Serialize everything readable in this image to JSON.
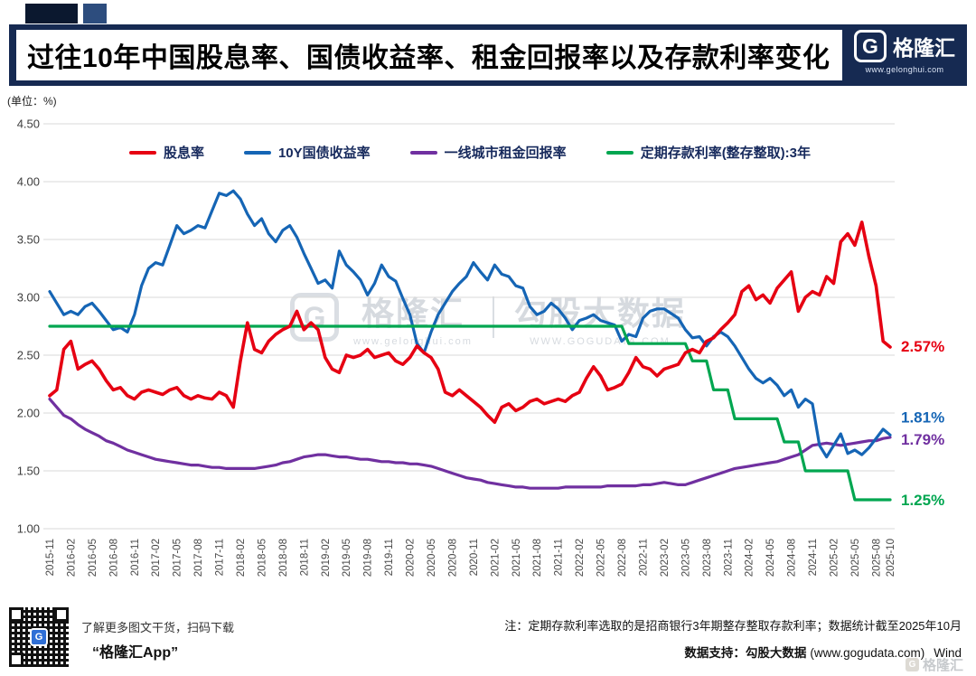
{
  "header": {
    "title": "过往10年中国股息率、国债收益率、租金回报率以及存款利率变化",
    "logo": {
      "monogram": "G",
      "brand": "格隆汇",
      "url": "www.gelonghui.com"
    }
  },
  "unit_label": "(单位：%)",
  "chart_data": {
    "type": "line",
    "title": "过往10年中国股息率、国债收益率、租金回报率以及存款利率变化",
    "ylabel": "(单位：%)",
    "xlabel": "",
    "ylim": [
      1.0,
      4.5
    ],
    "grid": true,
    "legend_position": "top",
    "yticks": [
      "4.50",
      "4.00",
      "3.50",
      "3.00",
      "2.50",
      "2.00",
      "1.50",
      "1.00"
    ],
    "x_monthly_start": "2015-11",
    "x_tick_labels": [
      "2015-11",
      "2016-02",
      "2016-05",
      "2016-08",
      "2016-11",
      "2017-02",
      "2017-05",
      "2017-08",
      "2017-11",
      "2018-02",
      "2018-05",
      "2018-08",
      "2018-11",
      "2019-02",
      "2019-05",
      "2019-08",
      "2019-11",
      "2020-02",
      "2020-05",
      "2020-08",
      "2020-11",
      "2021-02",
      "2021-05",
      "2021-08",
      "2021-11",
      "2022-02",
      "2022-05",
      "2022-08",
      "2022-11",
      "2023-02",
      "2023-05",
      "2023-08",
      "2023-11",
      "2024-02",
      "2024-05",
      "2024-08",
      "2024-11",
      "2025-02",
      "2025-05",
      "2025-08",
      "2025-10"
    ],
    "series": [
      {
        "key": "dividend-yield",
        "name": "股息率",
        "color": "#e60012",
        "end_label": "2.57%",
        "values": [
          2.15,
          2.2,
          2.55,
          2.62,
          2.38,
          2.42,
          2.45,
          2.38,
          2.28,
          2.2,
          2.22,
          2.15,
          2.12,
          2.18,
          2.2,
          2.18,
          2.16,
          2.2,
          2.22,
          2.15,
          2.12,
          2.15,
          2.13,
          2.12,
          2.18,
          2.15,
          2.05,
          2.45,
          2.78,
          2.55,
          2.52,
          2.62,
          2.68,
          2.72,
          2.75,
          2.88,
          2.72,
          2.78,
          2.72,
          2.48,
          2.38,
          2.35,
          2.5,
          2.48,
          2.5,
          2.55,
          2.48,
          2.5,
          2.52,
          2.45,
          2.42,
          2.48,
          2.58,
          2.52,
          2.48,
          2.38,
          2.18,
          2.15,
          2.2,
          2.15,
          2.1,
          2.05,
          1.98,
          1.92,
          2.05,
          2.08,
          2.02,
          2.05,
          2.1,
          2.12,
          2.08,
          2.1,
          2.12,
          2.1,
          2.15,
          2.18,
          2.3,
          2.4,
          2.32,
          2.2,
          2.22,
          2.25,
          2.35,
          2.48,
          2.4,
          2.38,
          2.32,
          2.38,
          2.4,
          2.42,
          2.52,
          2.55,
          2.52,
          2.62,
          2.65,
          2.72,
          2.78,
          2.85,
          3.05,
          3.1,
          2.98,
          3.02,
          2.95,
          3.08,
          3.15,
          3.22,
          2.88,
          3.0,
          3.05,
          3.02,
          3.18,
          3.12,
          3.48,
          3.55,
          3.45,
          3.65,
          3.35,
          3.1,
          2.62,
          2.57
        ]
      },
      {
        "key": "cn10y-bond-yield",
        "name": "10Y国债收益率",
        "color": "#1565b5",
        "end_label": "1.81%",
        "values": [
          3.05,
          2.95,
          2.85,
          2.88,
          2.85,
          2.92,
          2.95,
          2.88,
          2.8,
          2.72,
          2.74,
          2.7,
          2.85,
          3.1,
          3.25,
          3.3,
          3.28,
          3.45,
          3.62,
          3.55,
          3.58,
          3.62,
          3.6,
          3.75,
          3.9,
          3.88,
          3.92,
          3.85,
          3.72,
          3.62,
          3.68,
          3.55,
          3.48,
          3.58,
          3.62,
          3.52,
          3.38,
          3.25,
          3.12,
          3.15,
          3.08,
          3.4,
          3.28,
          3.22,
          3.15,
          3.02,
          3.12,
          3.28,
          3.18,
          3.14,
          2.99,
          2.85,
          2.6,
          2.52,
          2.7,
          2.85,
          2.95,
          3.05,
          3.12,
          3.18,
          3.3,
          3.22,
          3.15,
          3.28,
          3.2,
          3.18,
          3.1,
          3.08,
          2.92,
          2.85,
          2.88,
          2.95,
          2.9,
          2.82,
          2.72,
          2.8,
          2.82,
          2.85,
          2.8,
          2.78,
          2.76,
          2.62,
          2.68,
          2.66,
          2.82,
          2.88,
          2.9,
          2.9,
          2.86,
          2.82,
          2.72,
          2.65,
          2.66,
          2.58,
          2.66,
          2.7,
          2.66,
          2.58,
          2.48,
          2.38,
          2.3,
          2.26,
          2.3,
          2.24,
          2.15,
          2.2,
          2.05,
          2.12,
          2.08,
          1.72,
          1.62,
          1.72,
          1.82,
          1.65,
          1.68,
          1.64,
          1.7,
          1.78,
          1.86,
          1.81
        ]
      },
      {
        "key": "tier1-rental-yield",
        "name": "一线城市租金回报率",
        "color": "#7030a0",
        "end_label": "1.79%",
        "values": [
          2.12,
          2.05,
          1.98,
          1.95,
          1.9,
          1.86,
          1.83,
          1.8,
          1.76,
          1.74,
          1.71,
          1.68,
          1.66,
          1.64,
          1.62,
          1.6,
          1.59,
          1.58,
          1.57,
          1.56,
          1.55,
          1.55,
          1.54,
          1.53,
          1.53,
          1.52,
          1.52,
          1.52,
          1.52,
          1.52,
          1.53,
          1.54,
          1.55,
          1.57,
          1.58,
          1.6,
          1.62,
          1.63,
          1.64,
          1.64,
          1.63,
          1.62,
          1.62,
          1.61,
          1.6,
          1.6,
          1.59,
          1.58,
          1.58,
          1.57,
          1.57,
          1.56,
          1.56,
          1.55,
          1.54,
          1.52,
          1.5,
          1.48,
          1.46,
          1.44,
          1.43,
          1.42,
          1.4,
          1.39,
          1.38,
          1.37,
          1.36,
          1.36,
          1.35,
          1.35,
          1.35,
          1.35,
          1.35,
          1.36,
          1.36,
          1.36,
          1.36,
          1.36,
          1.36,
          1.37,
          1.37,
          1.37,
          1.37,
          1.37,
          1.38,
          1.38,
          1.39,
          1.4,
          1.39,
          1.38,
          1.38,
          1.4,
          1.42,
          1.44,
          1.46,
          1.48,
          1.5,
          1.52,
          1.53,
          1.54,
          1.55,
          1.56,
          1.57,
          1.58,
          1.6,
          1.62,
          1.64,
          1.68,
          1.72,
          1.73,
          1.74,
          1.73,
          1.72,
          1.73,
          1.74,
          1.75,
          1.76,
          1.76,
          1.78,
          1.79
        ]
      },
      {
        "key": "deposit-rate-3y",
        "name": "定期存款利率(整存整取):3年",
        "color": "#00a650",
        "end_label": "1.25%",
        "values": [
          2.75,
          2.75,
          2.75,
          2.75,
          2.75,
          2.75,
          2.75,
          2.75,
          2.75,
          2.75,
          2.75,
          2.75,
          2.75,
          2.75,
          2.75,
          2.75,
          2.75,
          2.75,
          2.75,
          2.75,
          2.75,
          2.75,
          2.75,
          2.75,
          2.75,
          2.75,
          2.75,
          2.75,
          2.75,
          2.75,
          2.75,
          2.75,
          2.75,
          2.75,
          2.75,
          2.75,
          2.75,
          2.75,
          2.75,
          2.75,
          2.75,
          2.75,
          2.75,
          2.75,
          2.75,
          2.75,
          2.75,
          2.75,
          2.75,
          2.75,
          2.75,
          2.75,
          2.75,
          2.75,
          2.75,
          2.75,
          2.75,
          2.75,
          2.75,
          2.75,
          2.75,
          2.75,
          2.75,
          2.75,
          2.75,
          2.75,
          2.75,
          2.75,
          2.75,
          2.75,
          2.75,
          2.75,
          2.75,
          2.75,
          2.75,
          2.75,
          2.75,
          2.75,
          2.75,
          2.75,
          2.75,
          2.75,
          2.6,
          2.6,
          2.6,
          2.6,
          2.6,
          2.6,
          2.6,
          2.6,
          2.6,
          2.45,
          2.45,
          2.45,
          2.2,
          2.2,
          2.2,
          1.95,
          1.95,
          1.95,
          1.95,
          1.95,
          1.95,
          1.95,
          1.75,
          1.75,
          1.75,
          1.5,
          1.5,
          1.5,
          1.5,
          1.5,
          1.5,
          1.5,
          1.25,
          1.25,
          1.25,
          1.25,
          1.25,
          1.25
        ]
      }
    ]
  },
  "watermark": {
    "monogram": "G",
    "brand": "格隆汇",
    "brand_url": "www.gelonghui.com",
    "partner": "勾股大数据",
    "partner_url": "WWW.GOGUDATA.COM"
  },
  "footer": {
    "qr_caption": "了解更多图文干货，扫码下载",
    "app_name": "“格隆汇App”",
    "note": "注：定期存款利率选取的是招商银行3年期整存整取存款利率；数据统计截至2025年10月",
    "support_bold": "数据支持：勾股大数据",
    "support_url": "(www.gogudata.com)",
    "support_suffix": "Wind",
    "corner_brand": "格隆汇",
    "corner_monogram": "G",
    "qr_monogram": "G"
  }
}
